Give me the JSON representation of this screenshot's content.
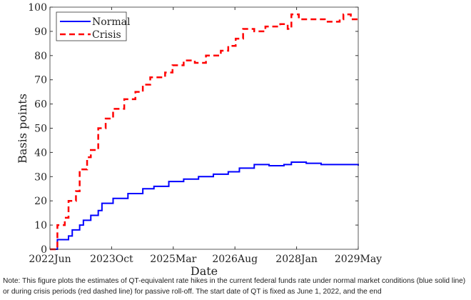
{
  "chart_data": {
    "type": "line",
    "title": "",
    "xlabel": "Date",
    "ylabel": "Basis points",
    "xlim": [
      "2022-06",
      "2029-05"
    ],
    "ylim": [
      0,
      100
    ],
    "x_ticks": [
      "2022Jun",
      "2023Oct",
      "2025Mar",
      "2026Aug",
      "2028Jan",
      "2029May"
    ],
    "y_ticks": [
      0,
      10,
      20,
      30,
      40,
      50,
      60,
      70,
      80,
      90,
      100
    ],
    "grid": false,
    "legend_position": "top-left",
    "series": [
      {
        "name": "Normal",
        "color": "#0000ff",
        "style": "solid",
        "x": [
          "2022-06",
          "2022-08",
          "2022-08",
          "2022-11",
          "2022-12",
          "2023-02",
          "2023-03",
          "2023-05",
          "2023-07",
          "2023-08",
          "2023-11",
          "2024-03",
          "2024-07",
          "2024-10",
          "2025-02",
          "2025-06",
          "2025-10",
          "2026-02",
          "2026-06",
          "2026-09",
          "2027-01",
          "2027-05",
          "2027-09",
          "2027-11",
          "2028-03",
          "2028-07",
          "2028-10",
          "2029-02",
          "2029-05"
        ],
        "y": [
          0,
          3,
          4,
          5.5,
          8,
          10,
          12,
          14,
          16,
          19,
          21,
          23,
          25,
          26,
          28,
          29,
          30,
          31,
          32,
          33.5,
          35,
          34.5,
          35,
          36,
          35.5,
          35,
          35,
          35,
          34.5
        ]
      },
      {
        "name": "Crisis",
        "color": "#ff0000",
        "style": "dashed",
        "x": [
          "2022-06",
          "2022-08",
          "2022-08",
          "2022-10",
          "2022-11",
          "2023-01",
          "2023-02",
          "2023-04",
          "2023-05",
          "2023-07",
          "2023-09",
          "2023-11",
          "2024-02",
          "2024-05",
          "2024-07",
          "2024-09",
          "2025-01",
          "2025-03",
          "2025-06",
          "2025-09",
          "2025-12",
          "2026-04",
          "2026-06",
          "2026-08",
          "2026-10",
          "2027-01",
          "2027-04",
          "2027-08",
          "2027-10",
          "2027-11",
          "2028-01",
          "2028-05",
          "2028-08",
          "2028-12",
          "2029-01",
          "2029-03",
          "2029-05"
        ],
        "y": [
          0,
          3,
          10,
          13,
          20,
          24,
          33,
          38,
          41,
          50,
          54,
          58,
          62,
          65,
          68,
          71,
          73,
          76,
          78,
          77,
          80,
          82,
          84,
          87,
          91,
          90,
          92,
          93,
          91,
          97,
          95,
          95,
          94,
          95,
          97,
          95,
          95
        ]
      }
    ]
  },
  "note": "Note: This figure plots the estimates of QT-equivalent rate hikes in the current federal funds rate under normal market conditions (blue solid line) or during crisis periods (red dashed line) for passive roll-off. The start date of QT is fixed as June 1, 2022, and the end"
}
